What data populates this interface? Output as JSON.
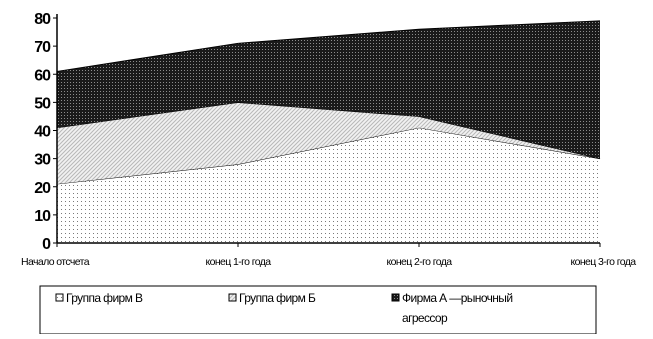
{
  "chart_data": {
    "type": "area",
    "stacked": true,
    "categories": [
      "Начало отсчета",
      "конец 1-го года",
      "конец 2-го года",
      "конец 3-го года"
    ],
    "series": [
      {
        "name": "Группа фирм В",
        "values": [
          21,
          28,
          41,
          30
        ],
        "pattern": "dots",
        "color": "#ffffff"
      },
      {
        "name": "Группа фирм Б",
        "values": [
          20,
          22,
          4,
          0
        ],
        "pattern": "hatch",
        "color": "#e8e8e8"
      },
      {
        "name": "Фирма А — рыночный агрессор",
        "values": [
          20,
          21,
          31,
          49
        ],
        "pattern": "dense",
        "color": "#1e1e1e"
      }
    ],
    "ylim": [
      0,
      80
    ],
    "yticks": [
      0,
      10,
      20,
      30,
      40,
      50,
      60,
      70,
      80
    ],
    "title": "",
    "xlabel": "",
    "ylabel": "",
    "grid": false,
    "legend_position": "bottom"
  },
  "legend": {
    "items": [
      {
        "label": "Группа фирм В"
      },
      {
        "label": "Группа фирм Б"
      },
      {
        "label": "Фирма А —рыночный",
        "label_line2": "агрессор"
      }
    ]
  }
}
